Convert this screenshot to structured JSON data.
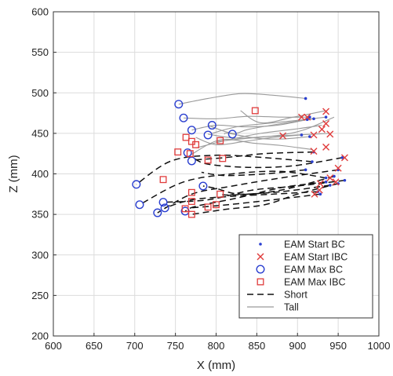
{
  "chart_data": {
    "type": "scatter",
    "title": "",
    "xlabel": "X (mm)",
    "ylabel": "Z (mm)",
    "xlim": [
      600,
      1000
    ],
    "ylim": [
      200,
      600
    ],
    "xticks": [
      600,
      650,
      700,
      750,
      800,
      850,
      900,
      950,
      1000
    ],
    "yticks": [
      200,
      250,
      300,
      350,
      400,
      450,
      500,
      550,
      600
    ],
    "grid": true,
    "legend_position": "bottom-right",
    "colors": {
      "blue": "#2a3fd0",
      "red": "#e03c3c",
      "short": "#111111",
      "tall": "#9a9a9a",
      "grid": "#dcdcdc"
    },
    "legend": [
      {
        "label": "EAM Start BC",
        "marker": "dot",
        "color": "#2a3fd0"
      },
      {
        "label": "EAM Start IBC",
        "marker": "x",
        "color": "#e03c3c"
      },
      {
        "label": "EAM Max BC",
        "marker": "circle",
        "color": "#2a3fd0"
      },
      {
        "label": "EAM Max IBC",
        "marker": "square",
        "color": "#e03c3c"
      },
      {
        "label": "Short",
        "marker": "dashed-line",
        "color": "#111111"
      },
      {
        "label": "Tall",
        "marker": "solid-line",
        "color": "#9a9a9a"
      }
    ],
    "series": [
      {
        "name": "Tall",
        "style": "solid",
        "paths": [
          [
            [
              910,
              493
            ],
            [
              870,
              497
            ],
            [
              830,
              499
            ],
            [
              790,
              493
            ],
            [
              754,
              486
            ]
          ],
          [
            [
              915,
              470
            ],
            [
              880,
              470
            ],
            [
              840,
              471
            ],
            [
              800,
              468
            ],
            [
              760,
              469
            ]
          ],
          [
            [
              912,
              467
            ],
            [
              875,
              460
            ],
            [
              835,
              458
            ],
            [
              800,
              460
            ],
            [
              770,
              454
            ]
          ],
          [
            [
              920,
              468
            ],
            [
              880,
              462
            ],
            [
              840,
              455
            ],
            [
              820,
              450
            ],
            [
              790,
              460
            ]
          ],
          [
            [
              935,
              470
            ],
            [
              900,
              466
            ],
            [
              860,
              462
            ],
            [
              825,
              458
            ],
            [
              795,
              450
            ]
          ],
          [
            [
              915,
              446
            ],
            [
              880,
              443
            ],
            [
              850,
              444
            ],
            [
              815,
              450
            ],
            [
              810,
              449
            ]
          ],
          [
            [
              905,
              448
            ],
            [
              870,
              445
            ],
            [
              835,
              440
            ],
            [
              800,
              436
            ],
            [
              775,
              445
            ]
          ],
          [
            [
              935,
              478
            ],
            [
              895,
              470
            ],
            [
              855,
              463
            ],
            [
              830,
              478
            ]
          ],
          [
            [
              930,
              460
            ],
            [
              895,
              455
            ],
            [
              855,
              450
            ],
            [
              815,
              442
            ],
            [
              775,
              432
            ]
          ],
          [
            [
              940,
              450
            ],
            [
              900,
              448
            ],
            [
              860,
              446
            ],
            [
              825,
              444
            ],
            [
              790,
              449
            ]
          ],
          [
            [
              945,
              470
            ],
            [
              910,
              455
            ],
            [
              880,
              448
            ],
            [
              840,
              444
            ],
            [
              800,
              440
            ]
          ],
          [
            [
              918,
              430
            ],
            [
              880,
              435
            ],
            [
              845,
              438
            ],
            [
              805,
              442
            ],
            [
              768,
              423
            ]
          ]
        ]
      },
      {
        "name": "Short",
        "style": "dashed",
        "paths": [
          [
            [
              918,
              415
            ],
            [
              860,
              420
            ],
            [
              800,
              423
            ],
            [
              745,
              416
            ],
            [
              702,
              387
            ]
          ],
          [
            [
              935,
              395
            ],
            [
              880,
              403
            ],
            [
              820,
              400
            ],
            [
              760,
              390
            ],
            [
              706,
              362
            ]
          ],
          [
            [
              920,
              427
            ],
            [
              860,
              425
            ],
            [
              810,
              420
            ],
            [
              770,
              417
            ]
          ],
          [
            [
              950,
              405
            ],
            [
              880,
              395
            ],
            [
              820,
              385
            ],
            [
              770,
              375
            ],
            [
              728,
              352
            ]
          ],
          [
            [
              945,
              397
            ],
            [
              880,
              380
            ],
            [
              830,
              375
            ],
            [
              800,
              382
            ],
            [
              784,
              385
            ]
          ],
          [
            [
              955,
              420
            ],
            [
              895,
              410
            ],
            [
              840,
              408
            ],
            [
              790,
              412
            ],
            [
              773,
              419
            ]
          ],
          [
            [
              958,
              392
            ],
            [
              900,
              385
            ],
            [
              845,
              380
            ],
            [
              790,
              368
            ],
            [
              735,
              365
            ]
          ],
          [
            [
              925,
              378
            ],
            [
              870,
              375
            ],
            [
              815,
              372
            ],
            [
              770,
              368
            ],
            [
              737,
              358
            ]
          ],
          [
            [
              935,
              390
            ],
            [
              880,
              383
            ],
            [
              825,
              370
            ],
            [
              775,
              360
            ],
            [
              762,
              354
            ]
          ],
          [
            [
              950,
              388
            ],
            [
              900,
              375
            ],
            [
              860,
              362
            ],
            [
              810,
              356
            ],
            [
              770,
              350
            ]
          ],
          [
            [
              940,
              386
            ],
            [
              880,
              378
            ],
            [
              820,
              374
            ],
            [
              805,
              375
            ]
          ],
          [
            [
              928,
              375
            ],
            [
              870,
              368
            ],
            [
              815,
              362
            ],
            [
              768,
              358
            ]
          ],
          [
            [
              910,
              405
            ],
            [
              860,
              400
            ],
            [
              810,
              398
            ],
            [
              782,
              402
            ]
          ]
        ]
      },
      {
        "name": "EAM Start BC",
        "marker": "dot",
        "points": [
          [
            910,
            493
          ],
          [
            915,
            470
          ],
          [
            912,
            467
          ],
          [
            920,
            468
          ],
          [
            935,
            470
          ],
          [
            915,
            446
          ],
          [
            905,
            448
          ],
          [
            918,
            415
          ],
          [
            935,
            395
          ],
          [
            920,
            427
          ],
          [
            950,
            405
          ],
          [
            945,
            397
          ],
          [
            955,
            420
          ],
          [
            958,
            392
          ],
          [
            925,
            378
          ],
          [
            935,
            390
          ],
          [
            950,
            388
          ],
          [
            940,
            386
          ],
          [
            928,
            375
          ],
          [
            910,
            405
          ]
        ]
      },
      {
        "name": "EAM Start IBC",
        "marker": "x",
        "points": [
          [
            912,
            470
          ],
          [
            935,
            477
          ],
          [
            935,
            462
          ],
          [
            940,
            449
          ],
          [
            930,
            455
          ],
          [
            905,
            470
          ],
          [
            920,
            448
          ],
          [
            882,
            447
          ],
          [
            920,
            428
          ],
          [
            935,
            433
          ],
          [
            958,
            420
          ],
          [
            950,
            407
          ],
          [
            947,
            390
          ],
          [
            927,
            380
          ],
          [
            921,
            375
          ],
          [
            940,
            395
          ],
          [
            928,
            388
          ]
        ]
      },
      {
        "name": "EAM Max BC",
        "marker": "circle",
        "points": [
          [
            754,
            486
          ],
          [
            760,
            469
          ],
          [
            770,
            454
          ],
          [
            790,
            448
          ],
          [
            795,
            460
          ],
          [
            820,
            449
          ],
          [
            765,
            426
          ],
          [
            770,
            416
          ],
          [
            702,
            387
          ],
          [
            706,
            362
          ],
          [
            728,
            352
          ],
          [
            735,
            365
          ],
          [
            737,
            358
          ],
          [
            762,
            354
          ],
          [
            784,
            385
          ]
        ]
      },
      {
        "name": "EAM Max IBC",
        "marker": "square",
        "points": [
          [
            848,
            478
          ],
          [
            763,
            445
          ],
          [
            775,
            436
          ],
          [
            770,
            440
          ],
          [
            805,
            441
          ],
          [
            753,
            427
          ],
          [
            768,
            425
          ],
          [
            790,
            417
          ],
          [
            808,
            419
          ],
          [
            735,
            393
          ],
          [
            770,
            377
          ],
          [
            770,
            366
          ],
          [
            762,
            357
          ],
          [
            770,
            350
          ],
          [
            805,
            375
          ],
          [
            790,
            359
          ],
          [
            800,
            362
          ]
        ]
      }
    ]
  }
}
